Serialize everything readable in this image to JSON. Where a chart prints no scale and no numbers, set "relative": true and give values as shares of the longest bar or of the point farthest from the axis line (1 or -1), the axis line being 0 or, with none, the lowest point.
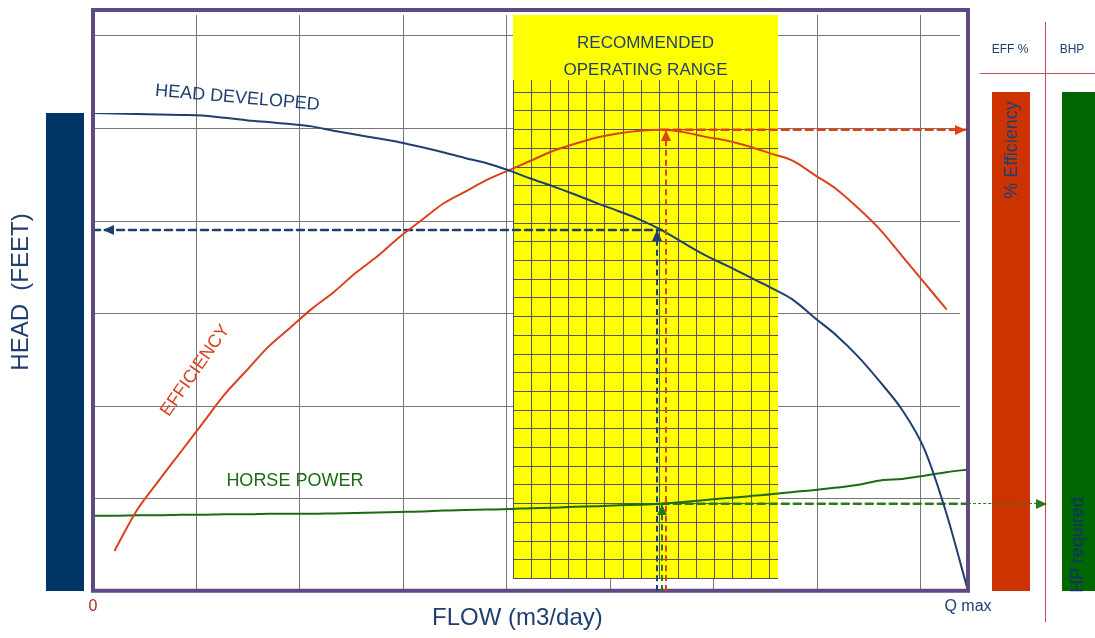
{
  "chart_data": {
    "type": "line",
    "relative": true,
    "xlabel": "FLOW (m3/day)",
    "ylabel": "HEAD  (FEET)",
    "categories": [
      "0",
      null,
      null,
      null,
      null,
      null,
      null,
      null,
      null,
      null,
      null,
      null,
      null,
      null,
      null,
      null,
      null,
      null,
      null,
      null,
      null,
      null,
      null,
      null,
      null,
      null,
      null,
      null,
      null,
      null,
      null,
      null,
      null,
      null,
      null,
      null,
      null,
      null,
      null,
      null,
      "Q max"
    ],
    "line_style": "solid",
    "series": [
      {
        "name": "HEAD DEVELOPED",
        "color": "#1f3f6e",
        "values": [
          1,
          0.999,
          0.998,
          0.997,
          0.996,
          0.995,
          0.99,
          0.985,
          0.981,
          0.977,
          0.972,
          0.963,
          0.955,
          0.947,
          0.939,
          0.929,
          0.918,
          0.906,
          0.895,
          0.88,
          0.863,
          0.847,
          0.83,
          0.812,
          0.795,
          0.777,
          0.755,
          0.728,
          0.702,
          0.68,
          0.657,
          0.634,
          0.609,
          0.571,
          0.534,
          0.489,
          0.436,
          0.378,
          0.297,
          0.164,
          0
        ]
      },
      {
        "name": "EFFICIENCY",
        "color": "#d9421b",
        "values": [
          null,
          0.085,
          0.168,
          0.23,
          0.29,
          0.35,
          0.41,
          0.46,
          0.51,
          0.55,
          0.59,
          0.625,
          0.665,
          0.7,
          0.74,
          0.775,
          0.81,
          0.835,
          0.86,
          0.88,
          0.9,
          0.92,
          0.935,
          0.948,
          0.957,
          0.963,
          0.965,
          0.96,
          0.95,
          0.942,
          0.93,
          0.915,
          0.9,
          0.87,
          0.84,
          0.8,
          0.755,
          0.7,
          0.645,
          0.59,
          null
        ]
      },
      {
        "name": "HORSE POWER",
        "color": "#1a6b12",
        "values": [
          0.157,
          0.157,
          0.158,
          0.158,
          0.159,
          0.159,
          0.16,
          0.16,
          0.161,
          0.161,
          0.161,
          0.162,
          0.163,
          0.164,
          0.165,
          0.166,
          0.168,
          0.169,
          0.17,
          0.171,
          0.173,
          0.174,
          0.176,
          0.177,
          0.179,
          0.18,
          0.182,
          0.186,
          0.19,
          0.194,
          0.198,
          0.202,
          0.207,
          0.211,
          0.216,
          0.222,
          0.231,
          0.234,
          0.241,
          0.248,
          0.254
        ]
      },
      {
        "color": "#1f3f6e",
        "line_style": "dashed",
        "values": [
          0.755,
          0.755,
          0.755,
          0.755,
          0.755,
          0.755,
          0.755,
          0.755,
          0.755,
          0.755,
          0.755,
          0.755,
          0.755,
          0.755,
          0.755,
          0.755,
          0.755,
          0.755,
          0.755,
          0.755,
          0.755,
          0.755,
          0.755,
          0.755,
          0.755,
          0.755,
          0.755,
          null,
          null,
          null,
          null,
          null,
          null,
          null,
          null,
          null,
          null,
          null,
          null,
          null,
          null
        ]
      },
      {
        "color": "#e0401a",
        "line_style": "dashed",
        "values": [
          null,
          null,
          null,
          null,
          null,
          null,
          null,
          null,
          null,
          null,
          null,
          null,
          null,
          null,
          null,
          null,
          null,
          null,
          null,
          null,
          null,
          null,
          null,
          null,
          null,
          null,
          0.965,
          0.965,
          0.965,
          0.965,
          0.965,
          0.965,
          0.965,
          0.965,
          0.965,
          0.965,
          0.965,
          0.965,
          0.965,
          0.965,
          0.965
        ]
      },
      {
        "color": "#2a7a1a",
        "line_style": "dashed",
        "values": [
          null,
          null,
          null,
          null,
          null,
          null,
          null,
          null,
          null,
          null,
          null,
          null,
          null,
          null,
          null,
          null,
          null,
          null,
          null,
          null,
          null,
          null,
          null,
          null,
          null,
          null,
          0.182,
          0.182,
          0.182,
          0.182,
          0.182,
          0.182,
          0.182,
          0.182,
          0.182,
          0.182,
          0.182,
          0.182,
          0.182,
          0.182,
          0.182
        ]
      }
    ],
    "annotations": [
      "RECOMMENDED OPERATING RANGE",
      "EFF %",
      "% Efficiency",
      "BHP",
      "HP required"
    ]
  }
}
